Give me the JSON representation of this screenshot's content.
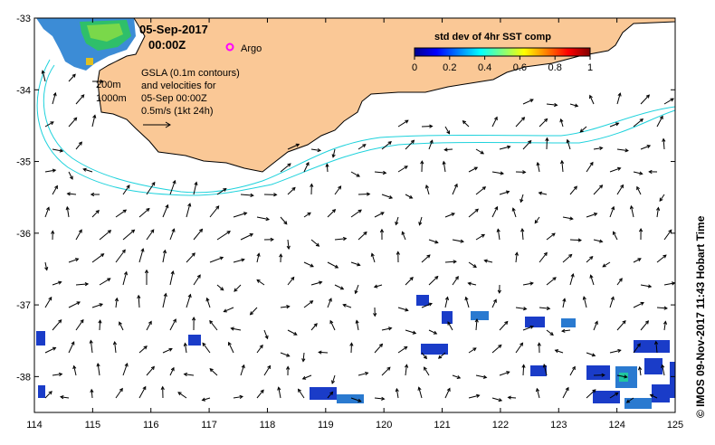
{
  "map": {
    "title_date": "05-Sep-2017",
    "title_time": "00:00Z",
    "argo_label": "Argo",
    "contour_labels": [
      "200m",
      "1000m"
    ],
    "gsla_lines": [
      "GSLA (0.1m contours)",
      "and velocities for",
      "05-Sep 00:00Z",
      "0.5m/s (1kt 24h)"
    ],
    "credit": "© IMOS 09-Nov-2017 11:43 Hobart Time",
    "x_ticks": [
      "114",
      "115",
      "116",
      "117",
      "118",
      "119",
      "120",
      "121",
      "122",
      "123",
      "124",
      "125"
    ],
    "y_ticks": [
      "-33",
      "-34",
      "-35",
      "-36",
      "-37",
      "-38"
    ],
    "x_range": [
      114,
      125
    ],
    "y_range": [
      -38.5,
      -33
    ],
    "colors": {
      "land": "#fac896",
      "contour": "#1ed2dc",
      "argo": "#ff00ff",
      "vector": "#000000"
    }
  },
  "colorbar": {
    "title": "std dev of 4hr SST comp",
    "ticks": [
      "0",
      "0.2",
      "0.4",
      "0.6",
      "0.8",
      "1"
    ],
    "range": [
      0,
      1
    ]
  }
}
